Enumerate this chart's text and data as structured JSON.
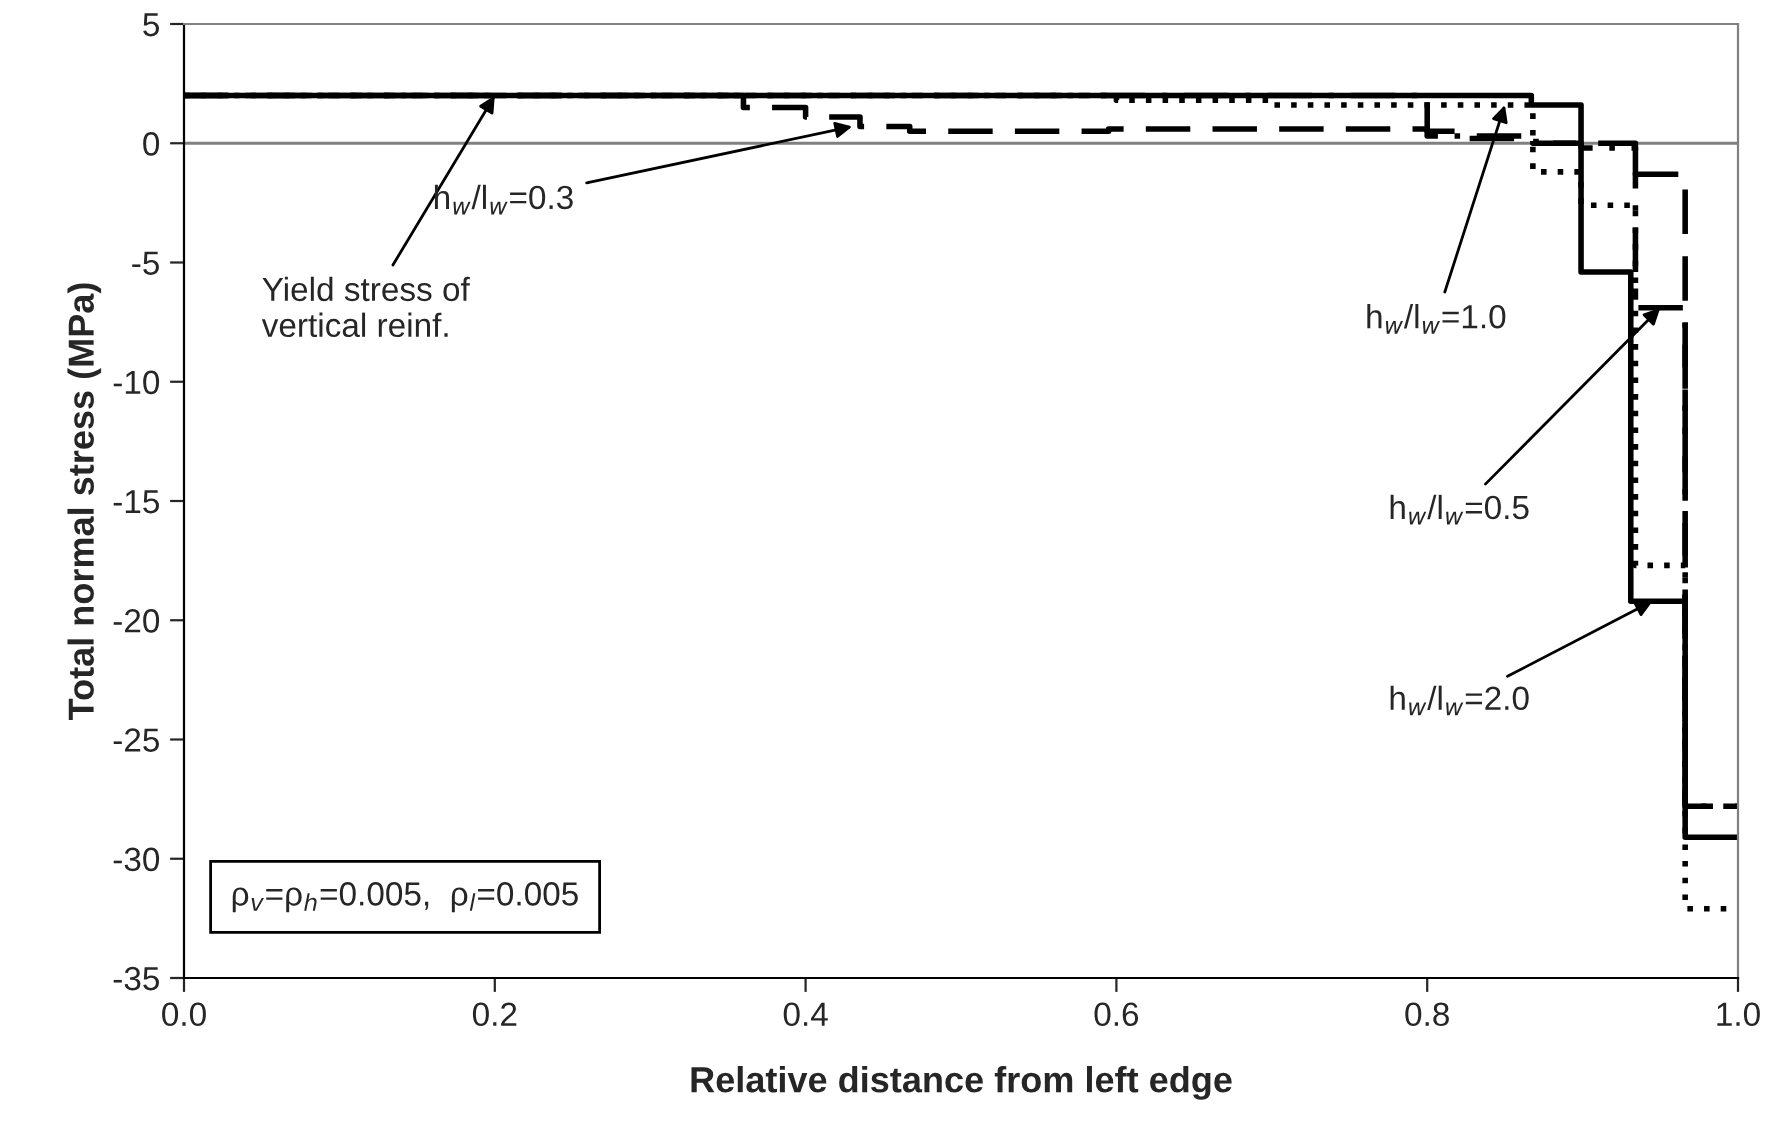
{
  "chart_data": {
    "type": "step",
    "xlabel": "Relative distance from left edge",
    "ylabel": "Total normal stress (MPa)",
    "series": [
      {
        "x": [
          0,
          0.36,
          0.4,
          0.435,
          0.467,
          0.595,
          0.8,
          0.82,
          0.87,
          0.934,
          0.966,
          1.0
        ],
        "values": [
          2.0,
          1.5,
          1.1,
          0.7,
          0.5,
          0.6,
          0.5,
          0.2,
          0.0,
          -1.3,
          -27.8,
          -27.8
        ],
        "color": "#000000",
        "line_style": "dashed"
      },
      {
        "x": [
          0,
          0.8,
          0.868,
          0.899,
          0.934,
          0.966,
          1.0
        ],
        "values": [
          2.0,
          0.3,
          0.0,
          -0.2,
          -6.9,
          -27.8,
          -27.8
        ],
        "color": "#000000",
        "line_style": "dashdot"
      },
      {
        "x": [
          0,
          0.6,
          0.7,
          0.84,
          0.868,
          0.899,
          0.934,
          0.966,
          1.0
        ],
        "values": [
          2.0,
          1.8,
          1.6,
          1.6,
          -1.2,
          -2.6,
          -17.7,
          -32.1,
          -32.1
        ],
        "color": "#000000",
        "line_style": "dotted"
      },
      {
        "x": [
          0,
          0.867,
          0.899,
          0.931,
          0.966,
          1.0
        ],
        "values": [
          2.0,
          1.6,
          -5.4,
          -19.2,
          -29.1,
          -29.1
        ],
        "color": "#000000",
        "line_style": "solid"
      }
    ],
    "xlim": [
      0,
      1.0
    ],
    "ylim": [
      -35,
      5
    ],
    "xticks": [
      {
        "value": 0,
        "label": "0.0"
      },
      {
        "value": 0.2,
        "label": "0.2"
      },
      {
        "value": 0.4,
        "label": "0.4"
      },
      {
        "value": 0.6,
        "label": "0.6"
      },
      {
        "value": 0.8,
        "label": "0.8"
      },
      {
        "value": 1.0,
        "label": "1.0"
      }
    ],
    "yticks": [
      5,
      0,
      -5,
      -10,
      -15,
      -20,
      -25,
      -30,
      -35
    ],
    "ref_lines": [
      {
        "axis": "y",
        "value": 0,
        "color": "#808080"
      }
    ],
    "annotations": [
      {
        "text": "Yield stress of\nvertical reinf.",
        "x": 0.2,
        "y": 2.0
      },
      {
        "text": "h$_{w}$/l$_{w}$=0.3",
        "x": 0.43,
        "y": 0.7
      },
      {
        "text": "h$_{w}$/l$_{w}$=1.0",
        "x": 0.85,
        "y": 1.6
      },
      {
        "text": "h$_{w}$/l$_{w}$=0.5",
        "x": 0.95,
        "y": -6.9
      },
      {
        "text": "h$_{w}$/l$_{w}$=2.0",
        "x": 0.945,
        "y": -19.2
      },
      "ρ$_{v}$=ρ$_{h}$=0.005,  ρ$_{l}$=0.005"
    ],
    "grid": false,
    "legend": false
  }
}
